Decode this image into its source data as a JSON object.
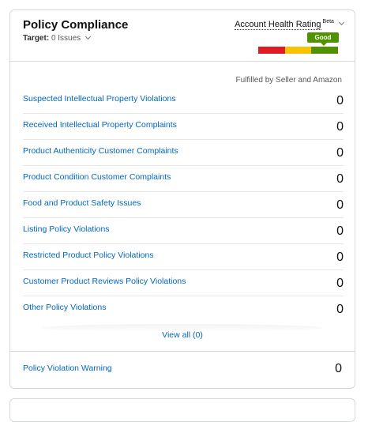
{
  "card": {
    "title": "Policy Compliance",
    "target_label": "Target:",
    "target_value": "0 Issues",
    "account_health": {
      "label": "Account Health Rating",
      "beta": "Beta",
      "status": "Good",
      "colors": [
        "#e01b24",
        "#f8c300",
        "#519200"
      ]
    },
    "column_header": "Fulfilled by Seller and Amazon",
    "rows": [
      {
        "label": "Suspected Intellectual Property Violations",
        "count": "0"
      },
      {
        "label": "Received Intellectual Property Complaints",
        "count": "0"
      },
      {
        "label": "Product Authenticity Customer Complaints",
        "count": "0"
      },
      {
        "label": "Product Condition Customer Complaints",
        "count": "0"
      },
      {
        "label": "Food and Product Safety Issues",
        "count": "0"
      },
      {
        "label": "Listing Policy Violations",
        "count": "0"
      },
      {
        "label": "Restricted Product Policy Violations",
        "count": "0"
      },
      {
        "label": "Customer Product Reviews Policy Violations",
        "count": "0"
      },
      {
        "label": "Other Policy Violations",
        "count": "0"
      }
    ],
    "view_all": "View all (0)",
    "warning": {
      "label": "Policy Violation Warning",
      "count": "0"
    }
  }
}
